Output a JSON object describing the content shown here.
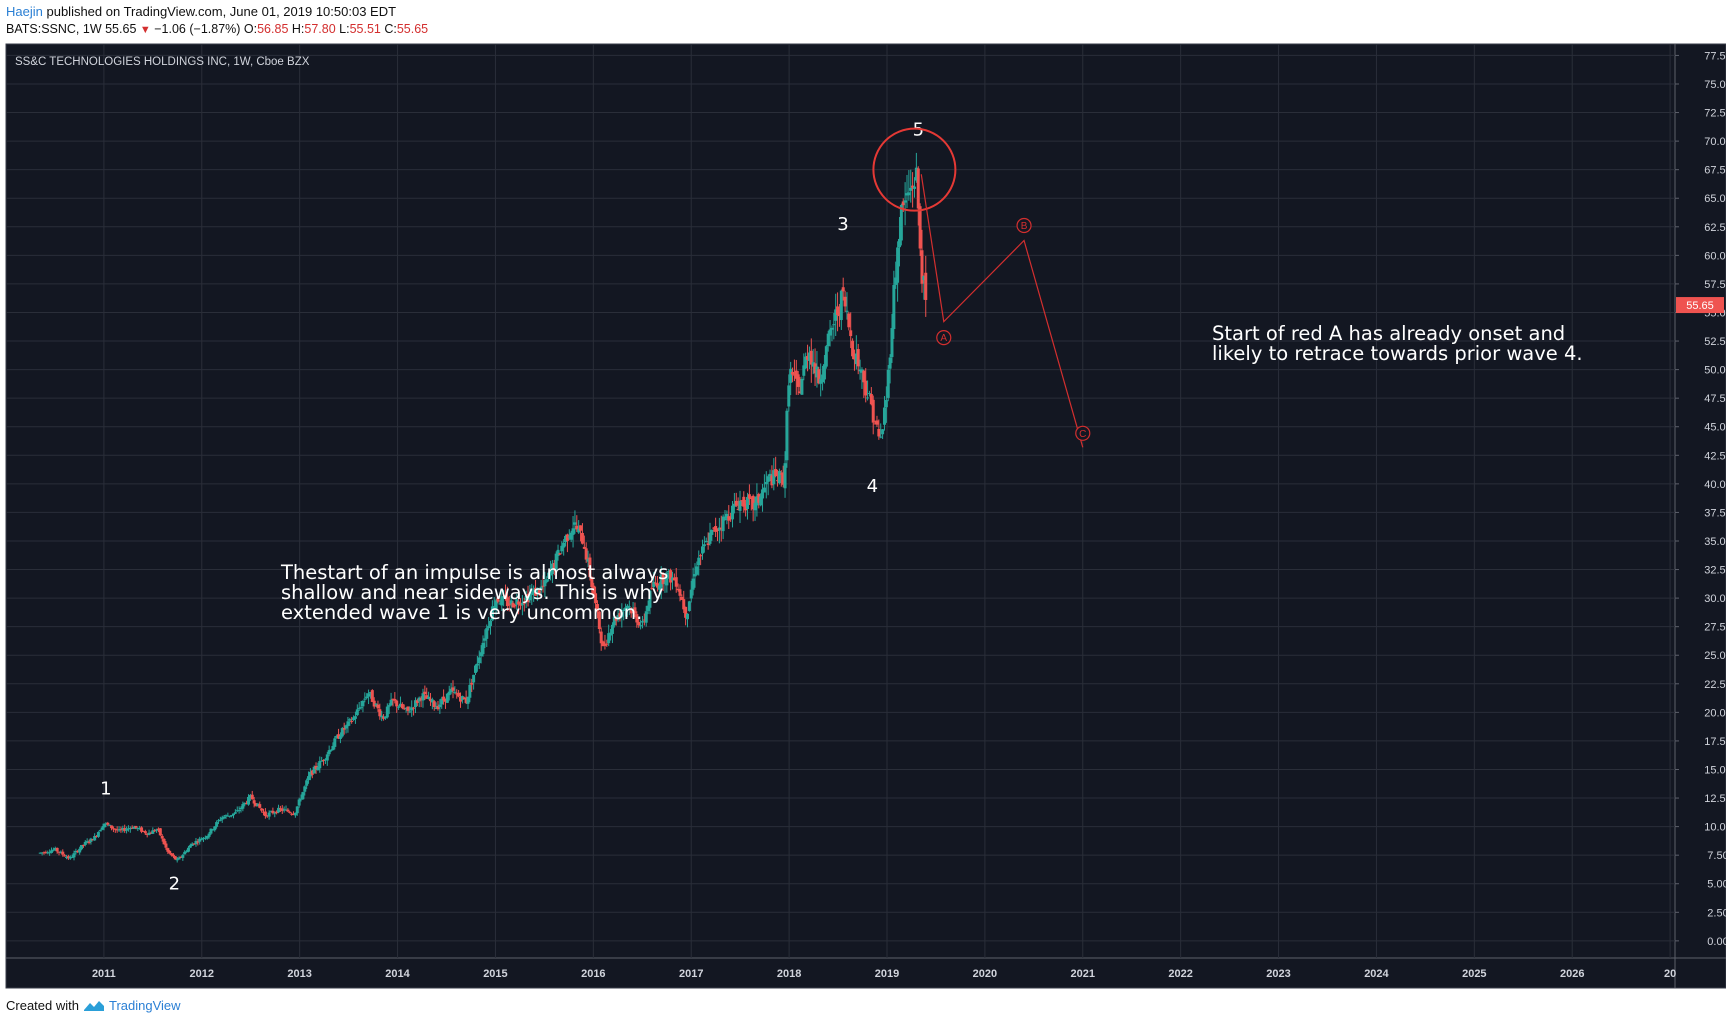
{
  "header": {
    "author": "Haejin",
    "published_text": "published on TradingView.com, June 01, 2019 10:50:03 EDT",
    "symbol": "BATS:SSNC, 1W",
    "last": "55.65",
    "change": "−1.06 (−1.87%)",
    "o_label": "O:",
    "o_value": "56.85",
    "h_label": "H:",
    "h_value": "57.80",
    "l_label": "L:",
    "l_value": "55.51",
    "c_label": "C:",
    "c_value": "55.65"
  },
  "footer": {
    "created_with": "Created with",
    "brand": "TradingView"
  },
  "colors": {
    "background": "#131722",
    "up": "#26a69a",
    "down": "#ef5350",
    "annotation": "#d32f2f",
    "grid": "#2a2e39",
    "axis_text": "#d1d4dc"
  },
  "chart_data": {
    "type": "candlestick",
    "title": "SS&C TECHNOLOGIES HOLDINGS INC, 1W, Cboe BZX",
    "y_ticks": [
      0,
      2.5,
      5,
      7.5,
      10,
      12.5,
      15,
      17.5,
      20,
      22.5,
      25,
      27.5,
      30,
      32.5,
      35,
      37.5,
      40,
      42.5,
      45,
      47.5,
      50,
      52.5,
      55,
      57.5,
      60,
      62.5,
      65,
      67.5,
      70,
      72.5,
      75,
      77.5
    ],
    "ylim": [
      -1.5,
      78.5
    ],
    "x_ticks": [
      "2011",
      "2012",
      "2013",
      "2014",
      "2015",
      "2016",
      "2017",
      "2018",
      "2019",
      "2020",
      "2021",
      "2022",
      "2023",
      "2024",
      "2025",
      "2026",
      "20"
    ],
    "xlim": [
      2010.0,
      2027.05
    ],
    "last_price_label": "55.65",
    "price_path": [
      [
        2010.35,
        7.7
      ],
      [
        2010.5,
        8.0
      ],
      [
        2010.65,
        7.2
      ],
      [
        2010.8,
        8.5
      ],
      [
        2010.9,
        9.0
      ],
      [
        2011.0,
        10.3
      ],
      [
        2011.15,
        9.6
      ],
      [
        2011.3,
        10.0
      ],
      [
        2011.45,
        9.4
      ],
      [
        2011.55,
        9.8
      ],
      [
        2011.65,
        7.8
      ],
      [
        2011.75,
        7.0
      ],
      [
        2011.9,
        8.5
      ],
      [
        2012.05,
        9.2
      ],
      [
        2012.2,
        10.8
      ],
      [
        2012.35,
        11.2
      ],
      [
        2012.5,
        12.6
      ],
      [
        2012.65,
        11.0
      ],
      [
        2012.8,
        11.5
      ],
      [
        2012.95,
        11.2
      ],
      [
        2013.1,
        14.5
      ],
      [
        2013.25,
        16.0
      ],
      [
        2013.4,
        18.0
      ],
      [
        2013.55,
        19.5
      ],
      [
        2013.7,
        21.8
      ],
      [
        2013.85,
        19.5
      ],
      [
        2013.95,
        21.0
      ],
      [
        2014.1,
        20.0
      ],
      [
        2014.25,
        21.5
      ],
      [
        2014.4,
        20.5
      ],
      [
        2014.55,
        21.8
      ],
      [
        2014.7,
        21.0
      ],
      [
        2014.85,
        25.5
      ],
      [
        2015.0,
        30.0
      ],
      [
        2015.15,
        29.5
      ],
      [
        2015.3,
        30.0
      ],
      [
        2015.5,
        31.0
      ],
      [
        2015.7,
        35.0
      ],
      [
        2015.8,
        36.5
      ],
      [
        2015.9,
        35.0
      ],
      [
        2016.0,
        30.5
      ],
      [
        2016.1,
        25.5
      ],
      [
        2016.2,
        28.0
      ],
      [
        2016.35,
        29.5
      ],
      [
        2016.5,
        27.5
      ],
      [
        2016.6,
        31.0
      ],
      [
        2016.75,
        32.0
      ],
      [
        2016.85,
        31.5
      ],
      [
        2016.95,
        28.5
      ],
      [
        2017.05,
        33.0
      ],
      [
        2017.2,
        35.5
      ],
      [
        2017.35,
        37.0
      ],
      [
        2017.5,
        38.5
      ],
      [
        2017.65,
        38.0
      ],
      [
        2017.8,
        40.5
      ],
      [
        2017.95,
        40.5
      ],
      [
        2018.0,
        50.0
      ],
      [
        2018.1,
        48.0
      ],
      [
        2018.2,
        52.0
      ],
      [
        2018.3,
        49.0
      ],
      [
        2018.45,
        54.0
      ],
      [
        2018.55,
        56.5
      ],
      [
        2018.65,
        52.0
      ],
      [
        2018.75,
        49.5
      ],
      [
        2018.85,
        46.5
      ],
      [
        2018.93,
        43.5
      ],
      [
        2019.0,
        48.0
      ],
      [
        2019.08,
        58.0
      ],
      [
        2019.15,
        64.0
      ],
      [
        2019.25,
        66.0
      ],
      [
        2019.3,
        67.0
      ],
      [
        2019.35,
        59.0
      ],
      [
        2019.4,
        55.65
      ]
    ],
    "wave_labels": [
      {
        "text": "1",
        "x": 2011.02,
        "y": 12.8
      },
      {
        "text": "2",
        "x": 2011.72,
        "y": 4.5
      },
      {
        "text": "3",
        "x": 2018.55,
        "y": 62.2
      },
      {
        "text": "4",
        "x": 2018.85,
        "y": 39.3
      },
      {
        "text": "5",
        "x": 2019.32,
        "y": 70.5
      }
    ],
    "circle_marker": {
      "x": 2019.28,
      "y": 67.5
    },
    "red_path": [
      {
        "label": "",
        "x": 2019.35,
        "y": 67.1
      },
      {
        "label": "A",
        "x": 2019.58,
        "y": 54.2
      },
      {
        "label": "B",
        "x": 2020.4,
        "y": 61.3
      },
      {
        "label": "C",
        "x": 2021.0,
        "y": 43.2
      }
    ],
    "annotations": [
      {
        "x": 2009.2,
        "y": 31.9,
        "lines": [
          "Thestart of an impulse is almost always",
          "shallow and near sideways. This is why",
          "extended wave 1 is very uncommon."
        ]
      },
      {
        "x": 2020.95,
        "y": 52.3,
        "lines": [
          "Start of red A has already onset and",
          "likely to retrace towards prior wave 4."
        ]
      }
    ]
  }
}
